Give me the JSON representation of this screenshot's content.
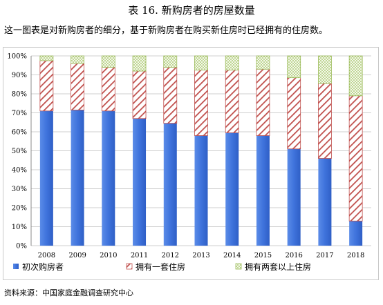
{
  "title": "表 16. 新购房者的房屋数量",
  "subtitle": "这一图表是对新购房者的细分，基于新购房者在购买新住房时已经拥有的住房数。",
  "source": "资料来源：中国家庭金融调查研究中心",
  "colors": {
    "first_time": "#3f73dc",
    "hatch_red": "#c0504d",
    "dot_green": "#9bbb59",
    "grid": "#cfcfcf"
  },
  "chart_data": {
    "type": "bar",
    "stacked": true,
    "categories": [
      "2008",
      "2009",
      "2010",
      "2011",
      "2012",
      "2013",
      "2014",
      "2015",
      "2016",
      "2017",
      "2018"
    ],
    "series": [
      {
        "name": "初次购房者",
        "values": [
          71,
          71.5,
          71,
          67,
          64.5,
          58,
          59.5,
          58,
          51,
          46,
          13
        ]
      },
      {
        "name": "拥有一套住房",
        "values": [
          26.5,
          24.5,
          23,
          25,
          29.5,
          34.5,
          33,
          35,
          37.5,
          39.5,
          66
        ]
      },
      {
        "name": "拥有两套以上住房",
        "values": [
          2.5,
          4,
          6,
          8,
          6,
          7.5,
          7.5,
          7,
          11.5,
          14.5,
          21
        ]
      }
    ],
    "yticks": [
      "0%",
      "10%",
      "20%",
      "30%",
      "40%",
      "50%",
      "60%",
      "70%",
      "80%",
      "90%",
      "100%"
    ],
    "ylim": [
      0,
      100
    ],
    "grid": true,
    "legend_position": "bottom"
  }
}
